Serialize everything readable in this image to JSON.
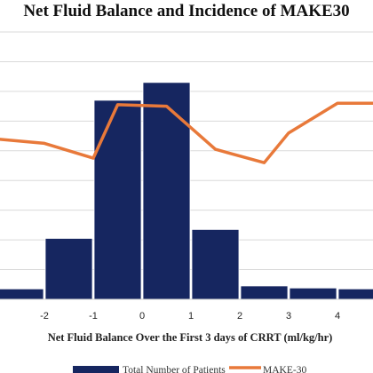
{
  "chart_data": {
    "type": "bar",
    "title": "Net Fluid Balance and Incidence of MAKE30",
    "xlabel": "Net Fluid Balance Over the First 3 days of CRRT (ml/kg/hr)",
    "ylabel": "",
    "tick_labels": [
      "-2",
      "-1",
      "0",
      "1",
      "2",
      "3",
      "4"
    ],
    "categories": [
      -2.5,
      -1.5,
      -0.5,
      0.5,
      1.5,
      2.5,
      3.5,
      4.5
    ],
    "ylim": [
      0,
      9
    ],
    "grid": "horizontal",
    "legend_position": "bottom",
    "series": [
      {
        "name": "Total Number of Patients",
        "kind": "bar",
        "color": "#162660",
        "values": [
          0.35,
          2.05,
          6.7,
          7.3,
          2.35,
          0.45,
          0.38,
          0.35
        ]
      },
      {
        "name": "MAKE-30",
        "kind": "line",
        "color": "#e8793a",
        "x": [
          -3.0,
          -2.0,
          -1.0,
          -0.5,
          0.5,
          1.5,
          2.5,
          3.0,
          4.0,
          5.0
        ],
        "values": [
          5.4,
          5.25,
          4.75,
          6.55,
          6.5,
          5.05,
          4.6,
          5.6,
          6.6,
          6.6
        ]
      }
    ]
  }
}
